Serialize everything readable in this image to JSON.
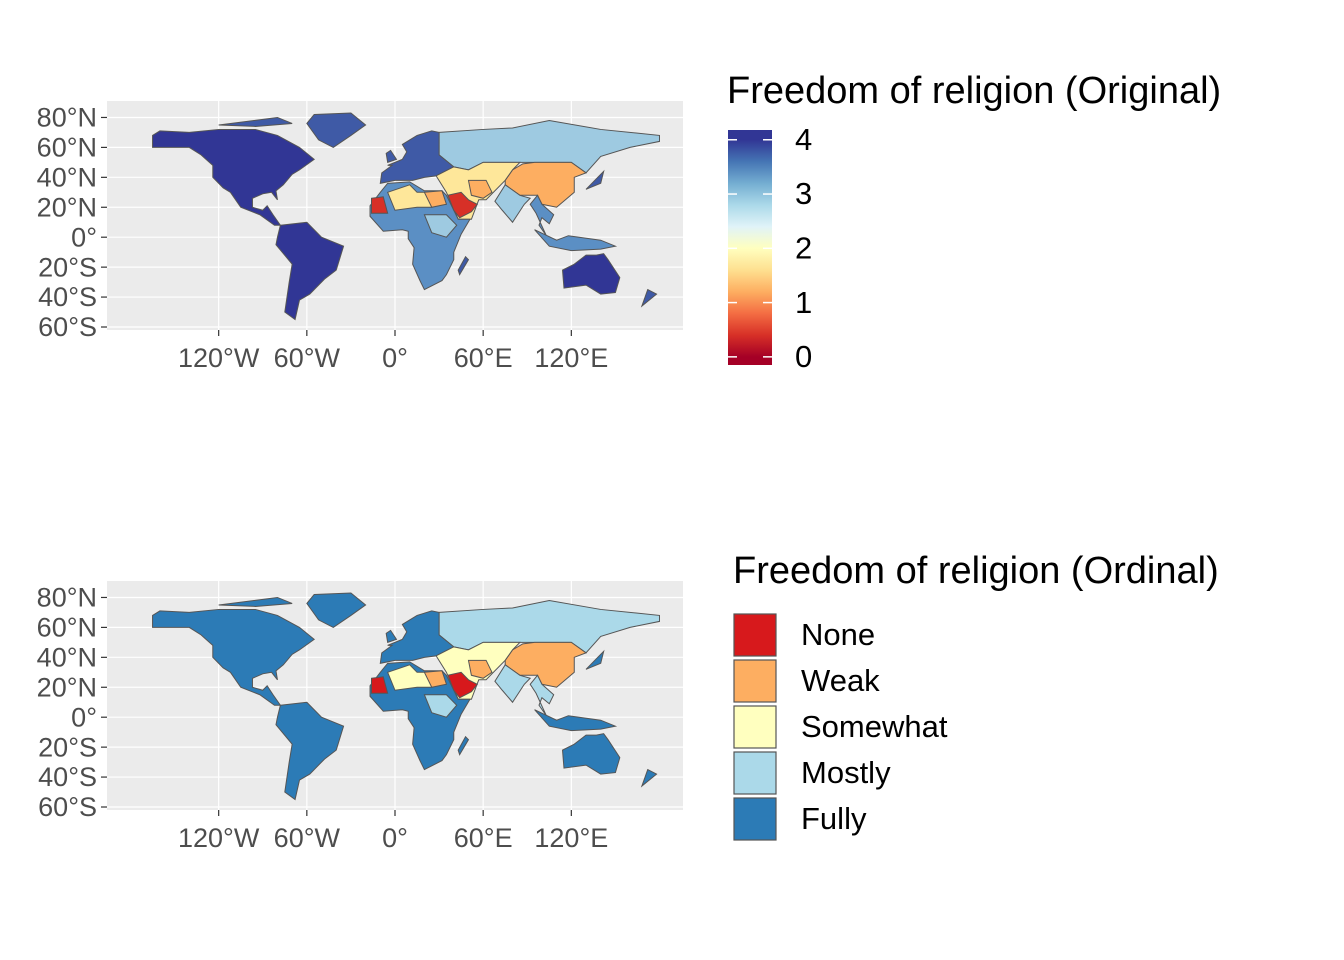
{
  "chart_data": [
    {
      "type": "map",
      "legend_title": "Freedom of religion (Original)",
      "xlim": [
        -196,
        196
      ],
      "ylim": [
        -62,
        91
      ],
      "xticks": [
        {
          "value": -120,
          "label": "120°W"
        },
        {
          "value": -60,
          "label": "60°W"
        },
        {
          "value": 0,
          "label": "0°"
        },
        {
          "value": 60,
          "label": "60°E"
        },
        {
          "value": 120,
          "label": "120°E"
        }
      ],
      "yticks": [
        {
          "value": -60,
          "label": "60°S"
        },
        {
          "value": -40,
          "label": "40°S"
        },
        {
          "value": -20,
          "label": "20°S"
        },
        {
          "value": 0,
          "label": "0°"
        },
        {
          "value": 20,
          "label": "20°N"
        },
        {
          "value": 40,
          "label": "40°N"
        },
        {
          "value": 60,
          "label": "60°N"
        },
        {
          "value": 80,
          "label": "80°N"
        }
      ],
      "grid": true,
      "colorbar": {
        "lim": [
          -0.15,
          4.18
        ],
        "ticks": [
          0,
          1,
          2,
          3,
          4
        ],
        "colors": [
          "#a50026",
          "#d73027",
          "#f46d43",
          "#fdae61",
          "#fee090",
          "#ffffbf",
          "#e0f3f8",
          "#abd9e9",
          "#74add1",
          "#4575b4",
          "#313695"
        ]
      }
    },
    {
      "type": "map",
      "legend_title": "Freedom of religion (Ordinal)",
      "xlim": [
        -196,
        196
      ],
      "ylim": [
        -62,
        91
      ],
      "xticks": [
        {
          "value": -120,
          "label": "120°W"
        },
        {
          "value": -60,
          "label": "60°W"
        },
        {
          "value": 0,
          "label": "0°"
        },
        {
          "value": 60,
          "label": "60°E"
        },
        {
          "value": 120,
          "label": "120°E"
        }
      ],
      "yticks": [
        {
          "value": -60,
          "label": "60°S"
        },
        {
          "value": -40,
          "label": "40°S"
        },
        {
          "value": -20,
          "label": "20°S"
        },
        {
          "value": 0,
          "label": "0°"
        },
        {
          "value": 20,
          "label": "20°N"
        },
        {
          "value": 40,
          "label": "40°N"
        },
        {
          "value": 60,
          "label": "60°N"
        },
        {
          "value": 80,
          "label": "80°N"
        }
      ],
      "grid": true,
      "series": [
        {
          "name": "None",
          "color": "#d7191c"
        },
        {
          "name": "Weak",
          "color": "#fdae61"
        },
        {
          "name": "Somewhat",
          "color": "#ffffbf"
        },
        {
          "name": "Mostly",
          "color": "#abd9e9"
        },
        {
          "name": "Fully",
          "color": "#2c7bb6"
        }
      ]
    }
  ]
}
